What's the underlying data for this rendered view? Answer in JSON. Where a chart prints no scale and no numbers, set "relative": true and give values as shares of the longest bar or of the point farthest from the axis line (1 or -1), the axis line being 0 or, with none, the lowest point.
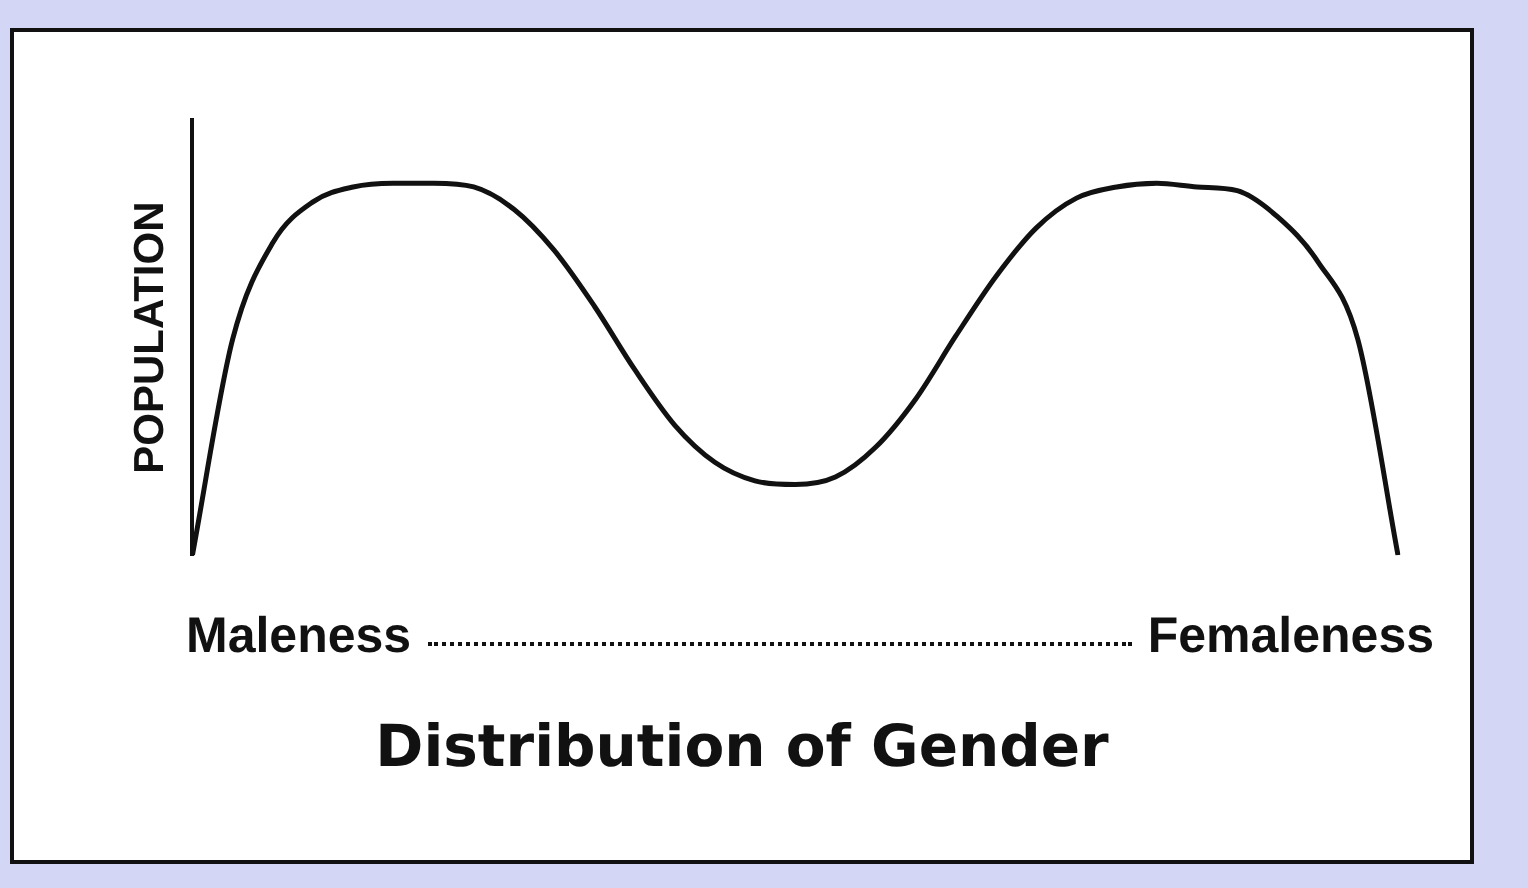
{
  "chart_data": {
    "type": "line",
    "relative": true,
    "xlabel": "Distribution of Gender",
    "ylabel": "POPULATION",
    "annotations": [
      "Maleness",
      "Femaleness"
    ],
    "categories": [
      null,
      null,
      null,
      null,
      null,
      null,
      null,
      null,
      null,
      null,
      null,
      null,
      null,
      null,
      null,
      null,
      null,
      null,
      null,
      null,
      null,
      null,
      null,
      null,
      null,
      null,
      null,
      null,
      null,
      null,
      null
    ],
    "values": [
      0,
      0.58,
      0.84,
      0.95,
      0.99,
      1,
      1,
      0.99,
      0.93,
      0.82,
      0.67,
      0.5,
      0.35,
      0.25,
      0.2,
      0.19,
      0.21,
      0.29,
      0.42,
      0.59,
      0.75,
      0.88,
      0.96,
      0.99,
      1,
      0.99,
      0.98,
      0.91,
      0.79,
      0.58,
      0
    ],
    "color": "#111111",
    "marker": "none",
    "line_style": "solid",
    "grid": false
  }
}
